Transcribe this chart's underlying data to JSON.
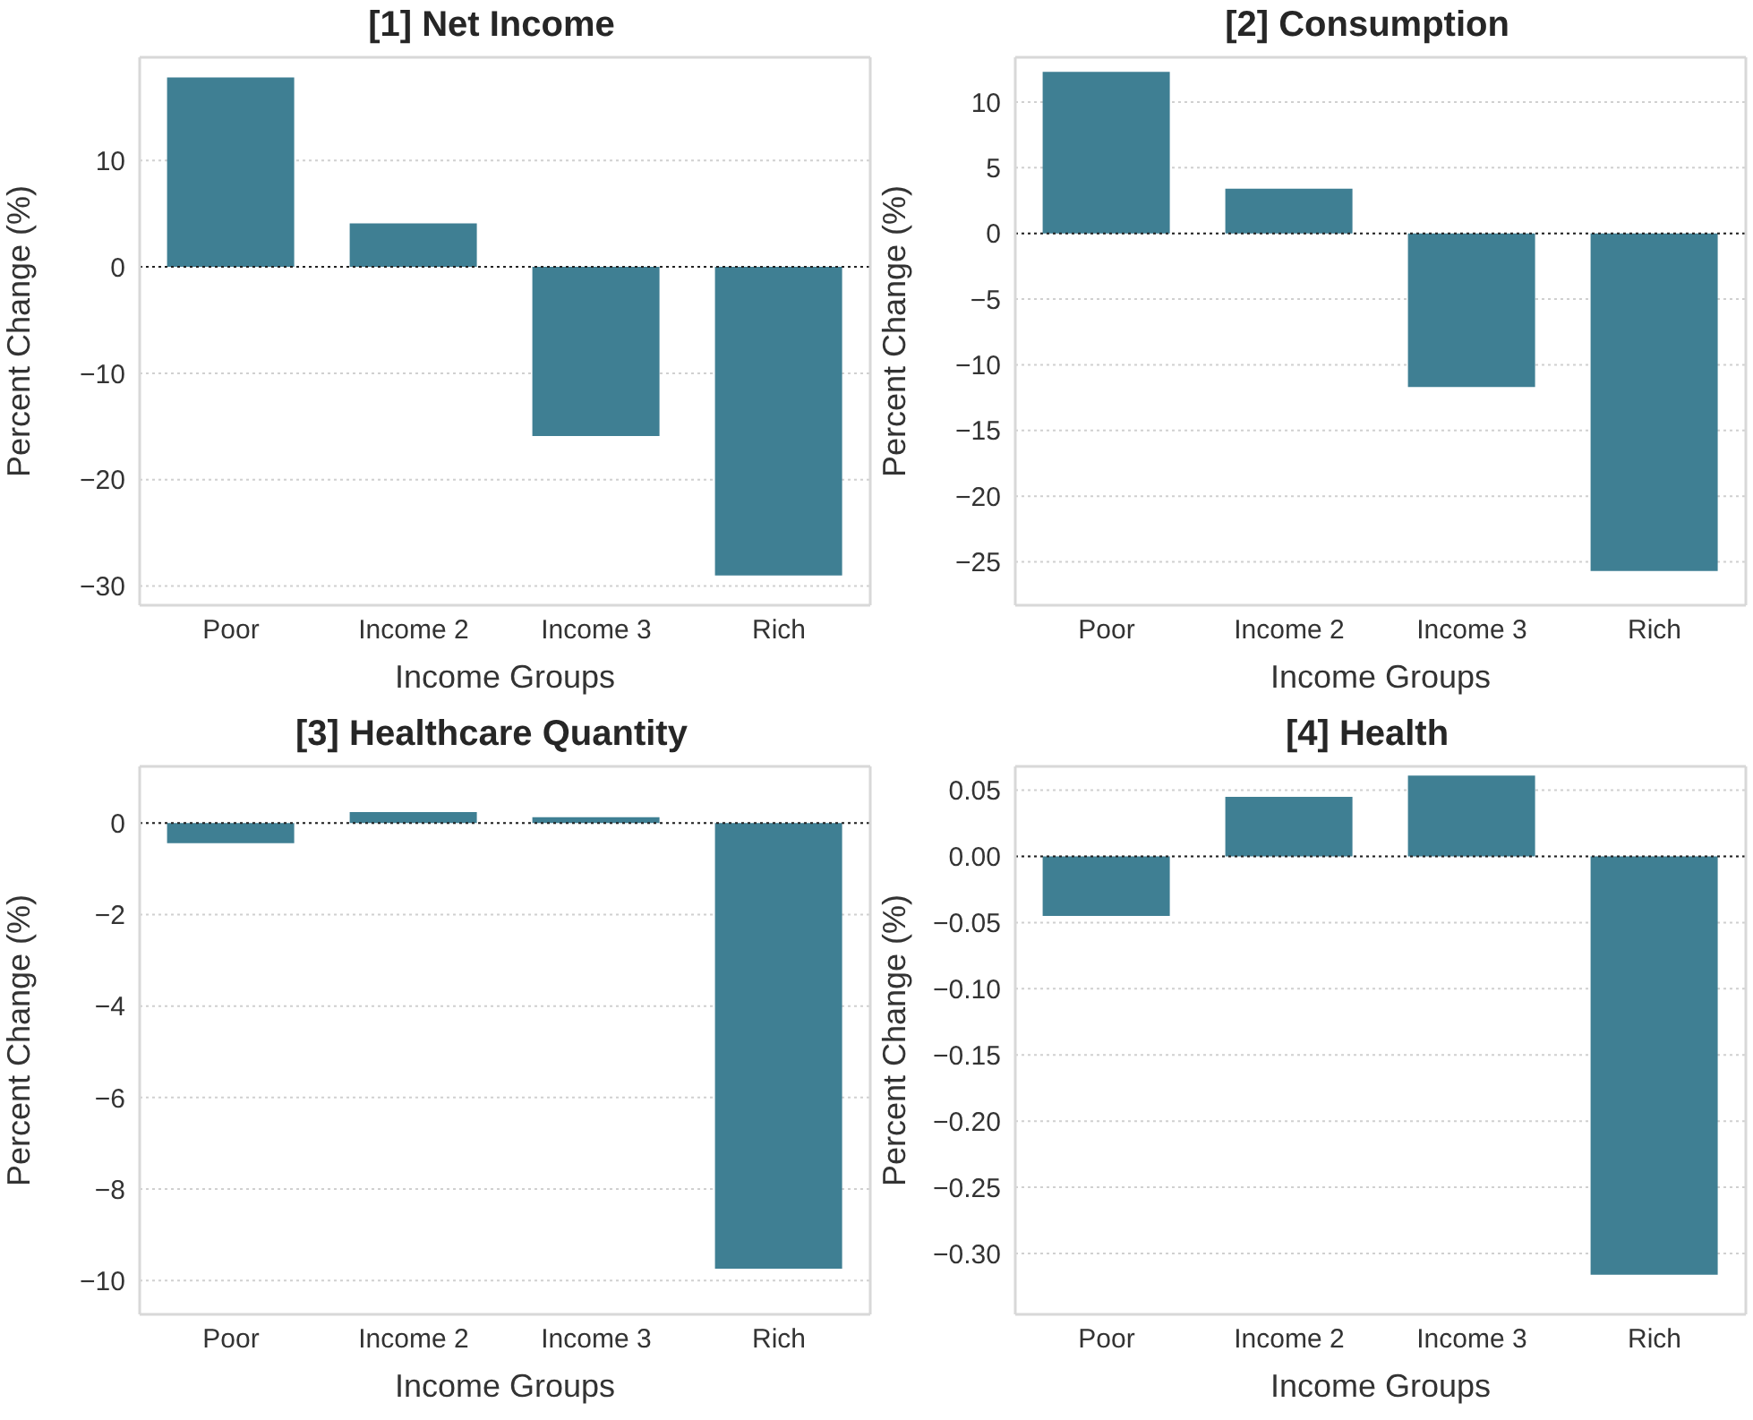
{
  "chart_data": [
    {
      "type": "bar",
      "title": "[1] Net Income",
      "xlabel": "Income Groups",
      "ylabel": "Percent Change (%)",
      "categories": [
        "Poor",
        "Income 2",
        "Income 3",
        "Rich"
      ],
      "values": [
        17.8,
        4.1,
        -15.9,
        -29.0
      ],
      "color": "#3f7f93",
      "ylim": [
        -31.8,
        19.7
      ],
      "yticks": [
        -30,
        -20,
        -10,
        0,
        10
      ],
      "grid": "y",
      "ref_lines": [
        {
          "axis": "y",
          "value": 0,
          "color": "#222222",
          "line_style": "dotted"
        }
      ]
    },
    {
      "type": "bar",
      "title": "[2] Consumption",
      "xlabel": "Income Groups",
      "ylabel": "Percent Change (%)",
      "categories": [
        "Poor",
        "Income 2",
        "Income 3",
        "Rich"
      ],
      "values": [
        12.3,
        3.4,
        -11.7,
        -25.7
      ],
      "color": "#3f7f93",
      "ylim": [
        -28.3,
        13.4
      ],
      "yticks": [
        -25,
        -20,
        -15,
        -10,
        -5,
        0,
        5,
        10
      ],
      "grid": "y",
      "ref_lines": [
        {
          "axis": "y",
          "value": 0,
          "color": "#222222",
          "line_style": "dotted"
        }
      ]
    },
    {
      "type": "bar",
      "title": "[3] Healthcare Quantity",
      "xlabel": "Income Groups",
      "ylabel": "Percent Change (%)",
      "categories": [
        "Poor",
        "Income 2",
        "Income 3",
        "Rich"
      ],
      "values": [
        -0.44,
        0.24,
        0.13,
        -9.74
      ],
      "color": "#3f7f93",
      "ylim": [
        -10.74,
        1.24
      ],
      "yticks": [
        -10,
        -8,
        -6,
        -4,
        -2,
        0
      ],
      "grid": "y",
      "ref_lines": [
        {
          "axis": "y",
          "value": 0,
          "color": "#222222",
          "line_style": "dotted"
        }
      ]
    },
    {
      "type": "bar",
      "title": "[4] Health",
      "xlabel": "Income Groups",
      "ylabel": "Percent Change (%)",
      "categories": [
        "Poor",
        "Income 2",
        "Income 3",
        "Rich"
      ],
      "values": [
        -0.045,
        0.045,
        0.061,
        -0.316
      ],
      "color": "#3f7f93",
      "ylim": [
        -0.346,
        0.068
      ],
      "yticks": [
        {
          "value": -0.3,
          "label": "−0.30"
        },
        {
          "value": -0.25,
          "label": "−0.25"
        },
        {
          "value": -0.2,
          "label": "−0.20"
        },
        {
          "value": -0.15,
          "label": "−0.15"
        },
        {
          "value": -0.1,
          "label": "−0.10"
        },
        {
          "value": -0.05,
          "label": "−0.05"
        },
        {
          "value": 0,
          "label": "0.00"
        },
        0.05
      ],
      "grid": "y",
      "ref_lines": [
        {
          "axis": "y",
          "value": 0,
          "color": "#222222",
          "line_style": "dotted"
        }
      ]
    }
  ]
}
